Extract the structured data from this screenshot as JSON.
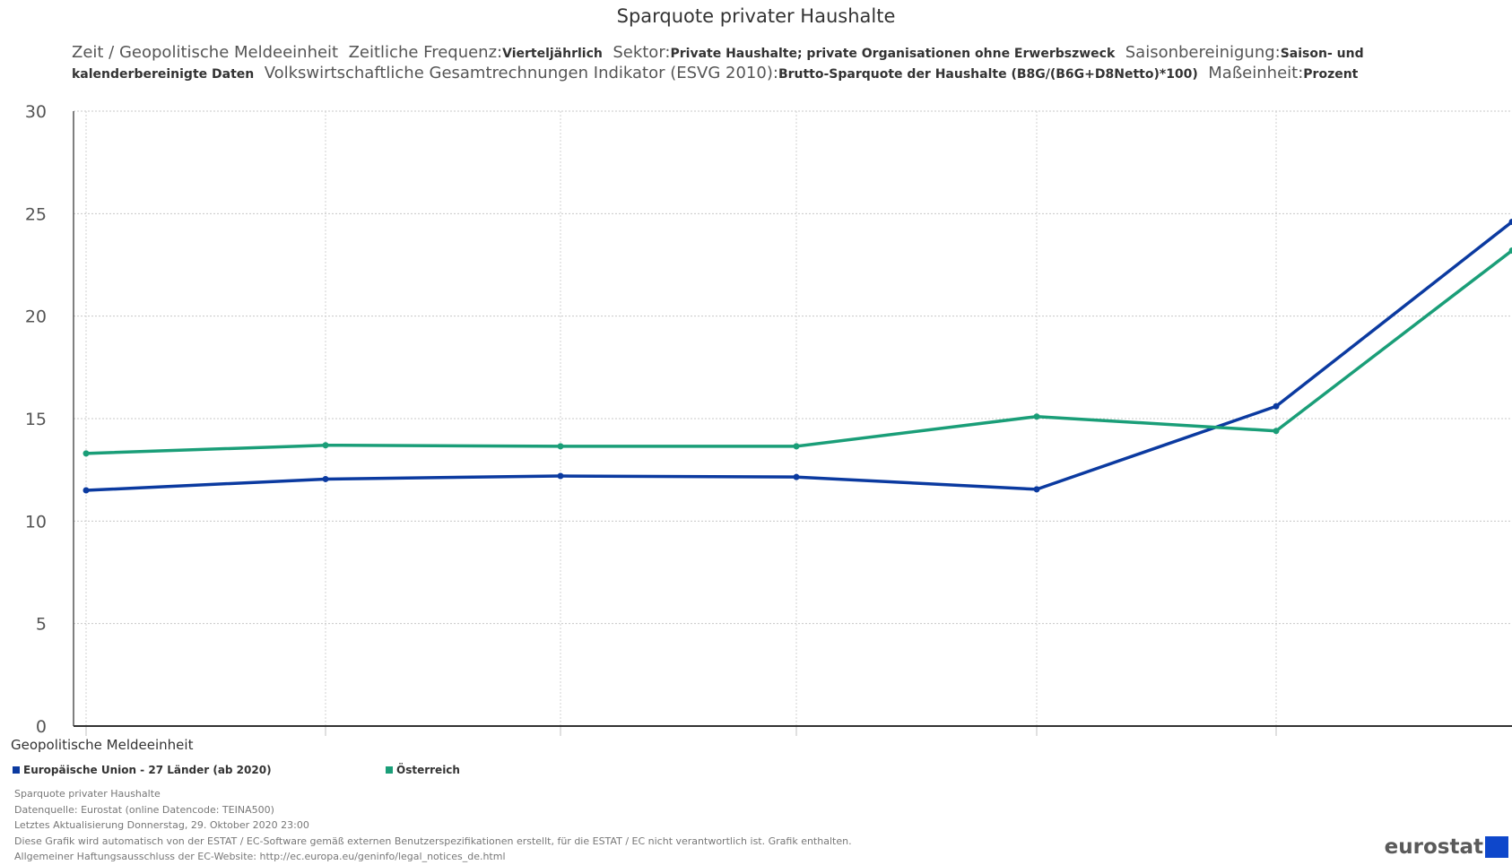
{
  "header": {
    "title": "Sparquote privater Haushalte",
    "dims": [
      {
        "label": "Zeit / Geopolitische Meldeeinheit",
        "value": ""
      },
      {
        "label": "Zeitliche Frequenz:",
        "value": "Vierteljährlich"
      },
      {
        "label": "Sektor:",
        "value": "Private Haushalte; private Organisationen ohne Erwerbszweck"
      },
      {
        "label": "Saisonbereinigung:",
        "value": "Saison- und kalenderbereinigte Daten"
      },
      {
        "label": "Volkswirtschaftliche Gesamtrechnungen Indikator (ESVG 2010):",
        "value": "Brutto-Sparquote der Haushalte (B8G/(B6G+D8Netto)*100)"
      },
      {
        "label": "Maßeinheit:",
        "value": "Prozent"
      }
    ]
  },
  "axis": {
    "x_title": "Geopolitische Meldeeinheit"
  },
  "legend": [
    {
      "label": "Europäische Union - 27 Länder (ab 2020)",
      "color": "#0b3aa0"
    },
    {
      "label": "Österreich",
      "color": "#1a9e78"
    }
  ],
  "notes": [
    "Sparquote privater Haushalte",
    "Datenquelle: Eurostat (online Datencode: TEINA500)",
    "Letztes Aktualisierung Donnerstag, 29. Oktober 2020 23:00",
    "Diese Grafik wird automatisch von der ESTAT / EC-Software gemäß externen Benutzerspezifikationen erstellt, für die ESTAT / EC nicht verantwortlich ist. Grafik enthalten.",
    "Allgemeiner Haftungsausschluss der EC-Website: http://ec.europa.eu/geninfo/legal_notices_de.html"
  ],
  "logo": {
    "text": "eurostat"
  },
  "chart_data": {
    "type": "line",
    "title": "Sparquote privater Haushalte",
    "xlabel": "Geopolitische Meldeeinheit",
    "ylabel": "",
    "x_tick_labels": "none printed",
    "ylim": [
      0,
      30
    ],
    "yticks": [
      0,
      5,
      10,
      15,
      20,
      25,
      30
    ],
    "grid": true,
    "legend_position": "bottom-left",
    "series": [
      {
        "name": "Europäische Union - 27 Länder (ab 2020)",
        "color": "#0b3aa0",
        "values": [
          11.5,
          12.05,
          12.2,
          12.15,
          11.55,
          15.6,
          24.6
        ]
      },
      {
        "name": "Österreich",
        "color": "#1a9e78",
        "values": [
          13.3,
          13.7,
          13.65,
          13.65,
          15.1,
          14.4,
          23.2
        ]
      }
    ]
  }
}
